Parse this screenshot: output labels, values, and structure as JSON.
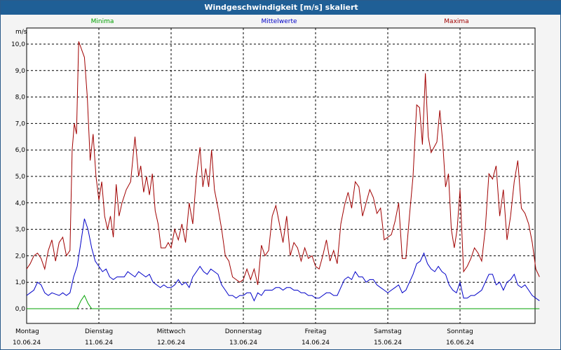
{
  "window": {
    "title": "Windgeschwindigkeit [m/s] skaliert"
  },
  "legend": {
    "minima": "Minima",
    "mean": "Mittelwerte",
    "maxima": "Maxima"
  },
  "colors": {
    "minima": "#00a000",
    "mean": "#0000c8",
    "maxima": "#a00000",
    "grid": "#000000",
    "title_bg": "#1f5f96"
  },
  "chart_data": {
    "type": "line",
    "title": "Windgeschwindigkeit [m/s] skaliert",
    "ylabel": "m/s",
    "ylim": [
      0,
      10.5
    ],
    "yticks": [
      "0,0",
      "1,0",
      "2,0",
      "3,0",
      "4,0",
      "5,0",
      "6,0",
      "7,0",
      "8,0",
      "9,0",
      "10,0"
    ],
    "grid": true,
    "legend_placement": "top",
    "x_days": [
      {
        "day": "Montag",
        "date": "10.06.24"
      },
      {
        "day": "Dienstag",
        "date": "11.06.24"
      },
      {
        "day": "Mittwoch",
        "date": "12.06.24"
      },
      {
        "day": "Donnerstag",
        "date": "13.06.24"
      },
      {
        "day": "Freitag",
        "date": "14.06.24"
      },
      {
        "day": "Samstag",
        "date": "15.06.24"
      },
      {
        "day": "Sonntag",
        "date": "16.06.24"
      }
    ],
    "x_range_days": [
      0,
      7
    ],
    "series": [
      {
        "name": "Maxima",
        "color": "#a00000",
        "points": [
          [
            0,
            1.5
          ],
          [
            0.05,
            1.7
          ],
          [
            0.1,
            2.0
          ],
          [
            0.15,
            2.1
          ],
          [
            0.2,
            1.9
          ],
          [
            0.25,
            1.5
          ],
          [
            0.3,
            2.2
          ],
          [
            0.35,
            2.6
          ],
          [
            0.4,
            1.8
          ],
          [
            0.45,
            2.5
          ],
          [
            0.5,
            2.7
          ],
          [
            0.55,
            2.0
          ],
          [
            0.6,
            2.2
          ],
          [
            0.63,
            6.0
          ],
          [
            0.66,
            7.0
          ],
          [
            0.69,
            6.6
          ],
          [
            0.72,
            10.1
          ],
          [
            0.76,
            9.8
          ],
          [
            0.8,
            9.5
          ],
          [
            0.84,
            8.0
          ],
          [
            0.88,
            5.6
          ],
          [
            0.92,
            6.6
          ],
          [
            0.96,
            5.0
          ],
          [
            1.0,
            4.1
          ],
          [
            1.04,
            4.8
          ],
          [
            1.08,
            3.5
          ],
          [
            1.12,
            3.0
          ],
          [
            1.16,
            3.5
          ],
          [
            1.2,
            2.7
          ],
          [
            1.24,
            4.7
          ],
          [
            1.28,
            3.5
          ],
          [
            1.32,
            4.0
          ],
          [
            1.38,
            4.5
          ],
          [
            1.44,
            4.8
          ],
          [
            1.5,
            6.5
          ],
          [
            1.55,
            5.0
          ],
          [
            1.58,
            5.4
          ],
          [
            1.62,
            4.4
          ],
          [
            1.66,
            5.0
          ],
          [
            1.7,
            4.3
          ],
          [
            1.74,
            5.1
          ],
          [
            1.78,
            3.7
          ],
          [
            1.82,
            3.2
          ],
          [
            1.86,
            2.3
          ],
          [
            1.92,
            2.3
          ],
          [
            1.96,
            2.5
          ],
          [
            2.0,
            2.3
          ],
          [
            2.05,
            3.0
          ],
          [
            2.1,
            2.6
          ],
          [
            2.15,
            3.2
          ],
          [
            2.2,
            2.5
          ],
          [
            2.25,
            4.0
          ],
          [
            2.3,
            3.2
          ],
          [
            2.35,
            5.0
          ],
          [
            2.4,
            6.1
          ],
          [
            2.44,
            4.6
          ],
          [
            2.48,
            5.3
          ],
          [
            2.52,
            4.6
          ],
          [
            2.56,
            6.0
          ],
          [
            2.6,
            4.5
          ],
          [
            2.65,
            3.8
          ],
          [
            2.7,
            3.0
          ],
          [
            2.75,
            2.0
          ],
          [
            2.8,
            1.8
          ],
          [
            2.85,
            1.2
          ],
          [
            2.9,
            1.1
          ],
          [
            2.95,
            1.0
          ],
          [
            3.0,
            1.1
          ],
          [
            3.05,
            1.5
          ],
          [
            3.1,
            1.1
          ],
          [
            3.15,
            1.5
          ],
          [
            3.2,
            0.9
          ],
          [
            3.25,
            2.4
          ],
          [
            3.3,
            2.0
          ],
          [
            3.35,
            2.2
          ],
          [
            3.4,
            3.5
          ],
          [
            3.45,
            3.9
          ],
          [
            3.5,
            3.2
          ],
          [
            3.55,
            2.5
          ],
          [
            3.6,
            3.5
          ],
          [
            3.65,
            2.0
          ],
          [
            3.7,
            2.5
          ],
          [
            3.75,
            2.3
          ],
          [
            3.8,
            1.8
          ],
          [
            3.85,
            2.3
          ],
          [
            3.9,
            1.9
          ],
          [
            3.95,
            2.0
          ],
          [
            4.0,
            1.6
          ],
          [
            4.05,
            1.5
          ],
          [
            4.1,
            2.0
          ],
          [
            4.15,
            2.6
          ],
          [
            4.2,
            1.8
          ],
          [
            4.25,
            2.2
          ],
          [
            4.3,
            1.7
          ],
          [
            4.35,
            3.2
          ],
          [
            4.4,
            3.9
          ],
          [
            4.45,
            4.4
          ],
          [
            4.5,
            3.8
          ],
          [
            4.55,
            4.8
          ],
          [
            4.6,
            4.6
          ],
          [
            4.65,
            3.5
          ],
          [
            4.7,
            4.0
          ],
          [
            4.75,
            4.5
          ],
          [
            4.8,
            4.2
          ],
          [
            4.85,
            3.6
          ],
          [
            4.9,
            3.8
          ],
          [
            4.95,
            2.6
          ],
          [
            5.0,
            2.7
          ],
          [
            5.05,
            2.8
          ],
          [
            5.1,
            3.3
          ],
          [
            5.15,
            4.0
          ],
          [
            5.2,
            1.9
          ],
          [
            5.25,
            1.9
          ],
          [
            5.3,
            3.5
          ],
          [
            5.35,
            5.0
          ],
          [
            5.4,
            7.7
          ],
          [
            5.44,
            7.6
          ],
          [
            5.48,
            6.2
          ],
          [
            5.52,
            8.9
          ],
          [
            5.56,
            6.5
          ],
          [
            5.6,
            5.9
          ],
          [
            5.64,
            6.1
          ],
          [
            5.68,
            6.3
          ],
          [
            5.72,
            7.5
          ],
          [
            5.76,
            6.3
          ],
          [
            5.8,
            4.6
          ],
          [
            5.84,
            5.1
          ],
          [
            5.88,
            3.0
          ],
          [
            5.92,
            2.3
          ],
          [
            5.96,
            3.0
          ],
          [
            6.0,
            4.5
          ],
          [
            6.05,
            1.4
          ],
          [
            6.1,
            1.6
          ],
          [
            6.15,
            1.9
          ],
          [
            6.2,
            2.3
          ],
          [
            6.25,
            2.1
          ],
          [
            6.3,
            1.8
          ],
          [
            6.35,
            3.0
          ],
          [
            6.4,
            5.1
          ],
          [
            6.45,
            4.9
          ],
          [
            6.5,
            5.4
          ],
          [
            6.55,
            3.5
          ],
          [
            6.6,
            4.5
          ],
          [
            6.65,
            2.6
          ],
          [
            6.7,
            3.5
          ],
          [
            6.75,
            4.8
          ],
          [
            6.8,
            5.6
          ],
          [
            6.85,
            3.8
          ],
          [
            6.9,
            3.6
          ],
          [
            6.95,
            3.2
          ],
          [
            7.0,
            2.5
          ],
          [
            7.05,
            1.5
          ],
          [
            7.1,
            1.2
          ]
        ]
      },
      {
        "name": "Mittelwerte",
        "color": "#0000c8",
        "points": [
          [
            0,
            0.5
          ],
          [
            0.05,
            0.6
          ],
          [
            0.1,
            0.7
          ],
          [
            0.15,
            1.0
          ],
          [
            0.2,
            0.9
          ],
          [
            0.25,
            0.6
          ],
          [
            0.3,
            0.5
          ],
          [
            0.35,
            0.6
          ],
          [
            0.4,
            0.55
          ],
          [
            0.45,
            0.5
          ],
          [
            0.5,
            0.6
          ],
          [
            0.55,
            0.5
          ],
          [
            0.6,
            0.6
          ],
          [
            0.65,
            1.2
          ],
          [
            0.7,
            1.6
          ],
          [
            0.75,
            2.5
          ],
          [
            0.8,
            3.4
          ],
          [
            0.85,
            3.0
          ],
          [
            0.9,
            2.3
          ],
          [
            0.95,
            1.8
          ],
          [
            1.0,
            1.6
          ],
          [
            1.05,
            1.4
          ],
          [
            1.1,
            1.5
          ],
          [
            1.15,
            1.2
          ],
          [
            1.2,
            1.1
          ],
          [
            1.25,
            1.2
          ],
          [
            1.3,
            1.2
          ],
          [
            1.35,
            1.2
          ],
          [
            1.4,
            1.4
          ],
          [
            1.45,
            1.3
          ],
          [
            1.5,
            1.2
          ],
          [
            1.55,
            1.4
          ],
          [
            1.6,
            1.3
          ],
          [
            1.65,
            1.2
          ],
          [
            1.7,
            1.3
          ],
          [
            1.75,
            1.0
          ],
          [
            1.8,
            0.9
          ],
          [
            1.85,
            0.8
          ],
          [
            1.9,
            0.9
          ],
          [
            1.95,
            0.8
          ],
          [
            2.0,
            0.8
          ],
          [
            2.05,
            0.9
          ],
          [
            2.1,
            1.1
          ],
          [
            2.15,
            0.9
          ],
          [
            2.2,
            1.0
          ],
          [
            2.25,
            0.8
          ],
          [
            2.3,
            1.2
          ],
          [
            2.35,
            1.4
          ],
          [
            2.4,
            1.6
          ],
          [
            2.45,
            1.4
          ],
          [
            2.5,
            1.3
          ],
          [
            2.55,
            1.5
          ],
          [
            2.6,
            1.4
          ],
          [
            2.65,
            1.3
          ],
          [
            2.7,
            0.9
          ],
          [
            2.75,
            0.7
          ],
          [
            2.8,
            0.5
          ],
          [
            2.85,
            0.5
          ],
          [
            2.9,
            0.4
          ],
          [
            2.95,
            0.5
          ],
          [
            3.0,
            0.5
          ],
          [
            3.05,
            0.6
          ],
          [
            3.1,
            0.6
          ],
          [
            3.15,
            0.3
          ],
          [
            3.2,
            0.6
          ],
          [
            3.25,
            0.5
          ],
          [
            3.3,
            0.7
          ],
          [
            3.35,
            0.7
          ],
          [
            3.4,
            0.7
          ],
          [
            3.45,
            0.8
          ],
          [
            3.5,
            0.8
          ],
          [
            3.55,
            0.7
          ],
          [
            3.6,
            0.8
          ],
          [
            3.65,
            0.8
          ],
          [
            3.7,
            0.7
          ],
          [
            3.75,
            0.7
          ],
          [
            3.8,
            0.6
          ],
          [
            3.85,
            0.6
          ],
          [
            3.9,
            0.5
          ],
          [
            3.95,
            0.5
          ],
          [
            4.0,
            0.4
          ],
          [
            4.05,
            0.4
          ],
          [
            4.1,
            0.5
          ],
          [
            4.15,
            0.6
          ],
          [
            4.2,
            0.6
          ],
          [
            4.25,
            0.5
          ],
          [
            4.3,
            0.5
          ],
          [
            4.35,
            0.8
          ],
          [
            4.4,
            1.1
          ],
          [
            4.45,
            1.2
          ],
          [
            4.5,
            1.1
          ],
          [
            4.55,
            1.4
          ],
          [
            4.6,
            1.2
          ],
          [
            4.65,
            1.2
          ],
          [
            4.7,
            1.0
          ],
          [
            4.75,
            1.1
          ],
          [
            4.8,
            1.1
          ],
          [
            4.85,
            0.9
          ],
          [
            4.9,
            0.8
          ],
          [
            4.95,
            0.7
          ],
          [
            5.0,
            0.6
          ],
          [
            5.05,
            0.7
          ],
          [
            5.1,
            0.8
          ],
          [
            5.15,
            0.9
          ],
          [
            5.2,
            0.6
          ],
          [
            5.25,
            0.7
          ],
          [
            5.3,
            1.0
          ],
          [
            5.35,
            1.3
          ],
          [
            5.4,
            1.7
          ],
          [
            5.45,
            1.8
          ],
          [
            5.5,
            2.1
          ],
          [
            5.55,
            1.7
          ],
          [
            5.6,
            1.5
          ],
          [
            5.65,
            1.4
          ],
          [
            5.7,
            1.6
          ],
          [
            5.75,
            1.4
          ],
          [
            5.8,
            1.3
          ],
          [
            5.85,
            0.9
          ],
          [
            5.9,
            0.7
          ],
          [
            5.95,
            0.6
          ],
          [
            6.0,
            1.0
          ],
          [
            6.05,
            0.4
          ],
          [
            6.1,
            0.4
          ],
          [
            6.15,
            0.5
          ],
          [
            6.2,
            0.5
          ],
          [
            6.25,
            0.6
          ],
          [
            6.3,
            0.7
          ],
          [
            6.35,
            1.0
          ],
          [
            6.4,
            1.3
          ],
          [
            6.45,
            1.3
          ],
          [
            6.5,
            0.9
          ],
          [
            6.55,
            1.0
          ],
          [
            6.6,
            0.7
          ],
          [
            6.65,
            1.0
          ],
          [
            6.7,
            1.1
          ],
          [
            6.75,
            1.3
          ],
          [
            6.8,
            0.9
          ],
          [
            6.85,
            0.8
          ],
          [
            6.9,
            0.9
          ],
          [
            6.95,
            0.7
          ],
          [
            7.0,
            0.5
          ],
          [
            7.05,
            0.4
          ],
          [
            7.1,
            0.3
          ]
        ]
      },
      {
        "name": "Minima",
        "color": "#00a000",
        "points": [
          [
            0,
            0.0
          ],
          [
            0.7,
            0.0
          ],
          [
            0.75,
            0.3
          ],
          [
            0.8,
            0.5
          ],
          [
            0.85,
            0.2
          ],
          [
            0.9,
            0.0
          ],
          [
            7.1,
            0.0
          ]
        ]
      }
    ]
  }
}
